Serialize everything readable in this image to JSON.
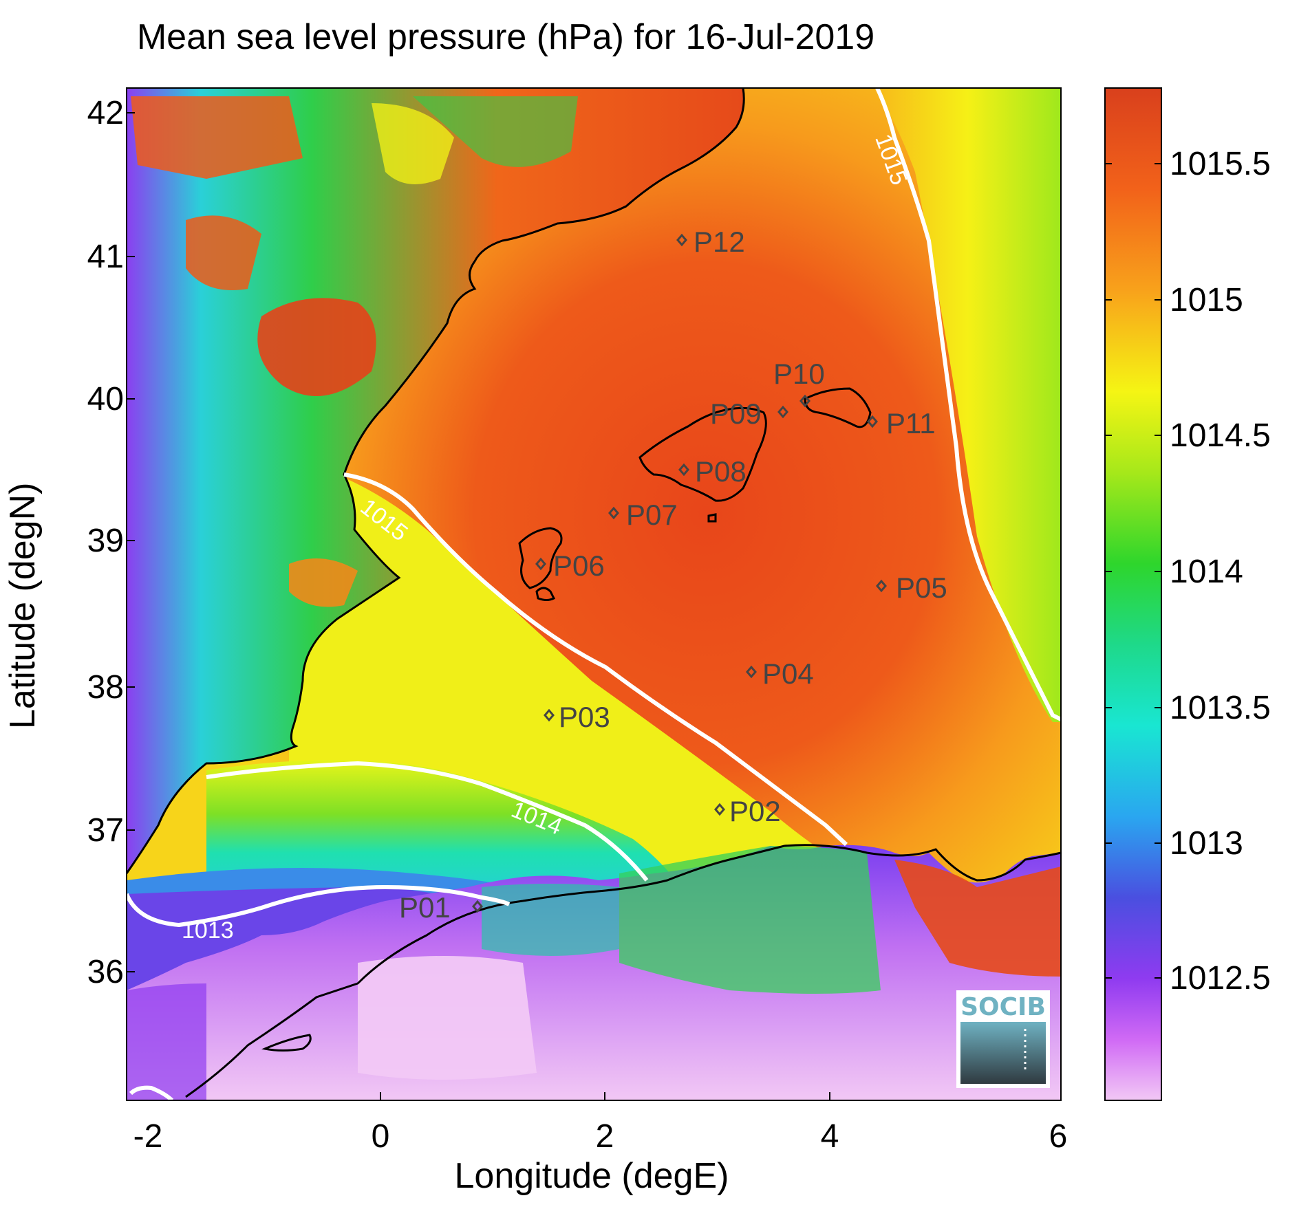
{
  "title": "Mean sea level pressure (hPa) for 16-Jul-2019",
  "xlabel": "Longitude (degE)",
  "ylabel": "Latitude (degN)",
  "x_ticks": [
    "-2",
    "0",
    "2",
    "4",
    "6"
  ],
  "y_ticks": [
    "42",
    "41",
    "40",
    "39",
    "38",
    "37",
    "36"
  ],
  "colorbar_ticks": [
    "1015.5",
    "1015",
    "1014.5",
    "1014",
    "1013.5",
    "1013",
    "1012.5"
  ],
  "contour_labels": [
    "1015",
    "1015",
    "1014",
    "1013"
  ],
  "stations": [
    "P01",
    "P02",
    "P03",
    "P04",
    "P05",
    "P06",
    "P07",
    "P08",
    "P09",
    "P10",
    "P11",
    "P12"
  ],
  "logo_text": "SOCIB",
  "colors": {
    "high": "#e5421a",
    "mid_high": "#f8a21b",
    "mid": "#f5f514",
    "mid_low": "#2ed62c",
    "low": "#19e6d2",
    "lower": "#3a59e0",
    "lowest": "#9a3df0",
    "min": "#f0c6f5"
  }
}
